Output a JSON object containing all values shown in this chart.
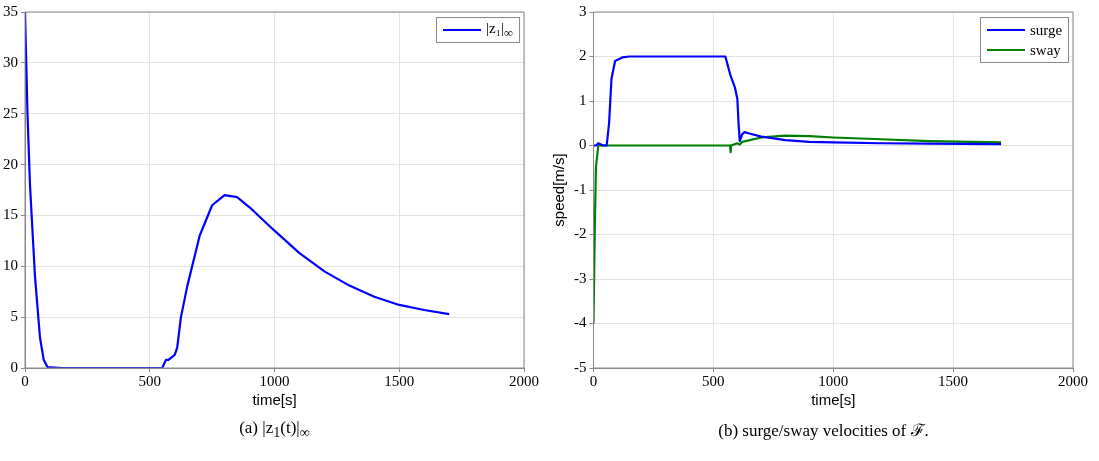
{
  "chart_data": [
    {
      "type": "line",
      "xlabel": "time[s]",
      "xlim": [
        0,
        2000
      ],
      "xticks": [
        0,
        500,
        1000,
        1500,
        2000
      ],
      "ylim": [
        0,
        35
      ],
      "yticks": [
        0,
        5,
        10,
        15,
        20,
        25,
        30,
        35
      ],
      "grid": true,
      "legend": "top right",
      "marker": "none",
      "line_style": "solid",
      "annotations": [
        "(a) |z$_{1}$(t)|$_{∞}$"
      ],
      "series": [
        {
          "name": "|z₁|$_{∞}$",
          "color": "#0000ff",
          "x": [
            0,
            10,
            20,
            40,
            60,
            75,
            90,
            150,
            550,
            565,
            575,
            600,
            610,
            625,
            650,
            700,
            750,
            800,
            850,
            900,
            1000,
            1100,
            1200,
            1300,
            1400,
            1500,
            1600,
            1700
          ],
          "values": [
            35,
            25,
            18,
            9,
            3,
            0.8,
            0.1,
            0,
            0,
            0.8,
            0.8,
            1.3,
            2,
            5,
            8,
            13,
            16,
            17,
            16.8,
            15.8,
            13.5,
            11.3,
            9.5,
            8.1,
            7,
            6.2,
            5.7,
            5.3
          ]
        }
      ]
    },
    {
      "type": "line",
      "xlabel": "time[s]",
      "ylabel": "speed[m/s]",
      "xlim": [
        0,
        2000
      ],
      "xticks": [
        0,
        500,
        1000,
        1500,
        2000
      ],
      "ylim": [
        -5,
        3
      ],
      "yticks": [
        -5,
        -4,
        -3,
        -2,
        -1,
        0,
        1,
        2,
        3
      ],
      "grid": true,
      "legend": "top right",
      "marker": "none",
      "line_style": "solid",
      "annotations": [
        "(b) surge/sway velocities of ℱ."
      ],
      "series": [
        {
          "name": "surge",
          "color": "#0000ff",
          "x": [
            0,
            10,
            20,
            40,
            55,
            65,
            75,
            90,
            120,
            150,
            550,
            560,
            570,
            590,
            600,
            605,
            610,
            620,
            630,
            650,
            700,
            800,
            900,
            1000,
            1200,
            1400,
            1700
          ],
          "values": [
            0,
            0,
            0.05,
            0,
            0,
            0.5,
            1.5,
            1.9,
            1.98,
            2,
            2,
            1.8,
            1.6,
            1.3,
            1.05,
            0.5,
            0.1,
            0.25,
            0.3,
            0.27,
            0.2,
            0.12,
            0.08,
            0.07,
            0.05,
            0.04,
            0.03
          ]
        },
        {
          "name": "sway",
          "color": "#008000",
          "x": [
            0,
            5,
            10,
            20,
            40,
            570,
            572,
            574,
            600,
            610,
            620,
            700,
            800,
            900,
            1000,
            1200,
            1400,
            1700
          ],
          "values": [
            -4,
            -2,
            -0.5,
            0,
            0,
            0,
            -0.15,
            0,
            0.05,
            0.02,
            0.08,
            0.18,
            0.22,
            0.21,
            0.18,
            0.14,
            0.1,
            0.07
          ]
        }
      ]
    }
  ]
}
